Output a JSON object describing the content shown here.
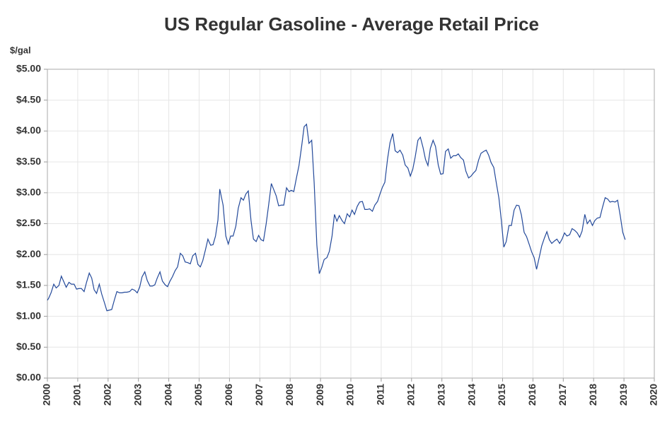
{
  "chart_data": {
    "type": "line",
    "title": "US Regular Gasoline - Average Retail Price",
    "ylabel": "$/gal",
    "grid": true,
    "xlim": [
      2000,
      2020
    ],
    "xticks": [
      2000,
      2001,
      2002,
      2003,
      2004,
      2005,
      2006,
      2007,
      2008,
      2009,
      2010,
      2011,
      2012,
      2013,
      2014,
      2015,
      2016,
      2017,
      2018,
      2019,
      2020
    ],
    "ylim": [
      0,
      5
    ],
    "yticks": [
      {
        "value": 0,
        "label": "$0.00"
      },
      {
        "value": 0.5,
        "label": "$0.50"
      },
      {
        "value": 1,
        "label": "$1.00"
      },
      {
        "value": 1.5,
        "label": "$1.50"
      },
      {
        "value": 2,
        "label": "$2.00"
      },
      {
        "value": 2.5,
        "label": "$2.50"
      },
      {
        "value": 3,
        "label": "$3.00"
      },
      {
        "value": 3.5,
        "label": "$3.50"
      },
      {
        "value": 4,
        "label": "$4.00"
      },
      {
        "value": 4.5,
        "label": "$4.50"
      },
      {
        "value": 5,
        "label": "$5.00"
      }
    ],
    "x": [
      2000,
      2000.04,
      2000.12,
      2000.21,
      2000.29,
      2000.38,
      2000.46,
      2000.54,
      2000.62,
      2000.71,
      2000.79,
      2000.88,
      2000.96,
      2001.04,
      2001.12,
      2001.21,
      2001.29,
      2001.38,
      2001.46,
      2001.54,
      2001.62,
      2001.71,
      2001.79,
      2001.88,
      2001.96,
      2002.04,
      2002.12,
      2002.21,
      2002.29,
      2002.38,
      2002.46,
      2002.54,
      2002.62,
      2002.71,
      2002.79,
      2002.88,
      2002.96,
      2003.04,
      2003.12,
      2003.21,
      2003.29,
      2003.38,
      2003.46,
      2003.54,
      2003.62,
      2003.71,
      2003.79,
      2003.88,
      2003.96,
      2004.04,
      2004.12,
      2004.21,
      2004.29,
      2004.38,
      2004.46,
      2004.54,
      2004.62,
      2004.71,
      2004.79,
      2004.88,
      2004.96,
      2005.04,
      2005.12,
      2005.21,
      2005.29,
      2005.38,
      2005.46,
      2005.54,
      2005.62,
      2005.68,
      2005.79,
      2005.88,
      2005.96,
      2006.04,
      2006.12,
      2006.21,
      2006.29,
      2006.38,
      2006.46,
      2006.54,
      2006.62,
      2006.71,
      2006.79,
      2006.88,
      2006.96,
      2007.04,
      2007.12,
      2007.21,
      2007.29,
      2007.38,
      2007.46,
      2007.54,
      2007.62,
      2007.71,
      2007.79,
      2007.88,
      2007.96,
      2008.04,
      2008.12,
      2008.21,
      2008.29,
      2008.38,
      2008.46,
      2008.54,
      2008.62,
      2008.71,
      2008.79,
      2008.88,
      2008.96,
      2009.04,
      2009.12,
      2009.21,
      2009.29,
      2009.38,
      2009.46,
      2009.54,
      2009.62,
      2009.71,
      2009.79,
      2009.88,
      2009.96,
      2010.04,
      2010.12,
      2010.21,
      2010.29,
      2010.38,
      2010.46,
      2010.54,
      2010.62,
      2010.71,
      2010.79,
      2010.88,
      2010.96,
      2011.04,
      2011.12,
      2011.21,
      2011.29,
      2011.38,
      2011.46,
      2011.54,
      2011.62,
      2011.71,
      2011.79,
      2011.88,
      2011.96,
      2012.04,
      2012.12,
      2012.21,
      2012.29,
      2012.38,
      2012.46,
      2012.54,
      2012.62,
      2012.71,
      2012.79,
      2012.88,
      2012.96,
      2013.04,
      2013.12,
      2013.21,
      2013.29,
      2013.38,
      2013.46,
      2013.54,
      2013.62,
      2013.71,
      2013.79,
      2013.88,
      2013.96,
      2014.04,
      2014.12,
      2014.21,
      2014.29,
      2014.38,
      2014.46,
      2014.54,
      2014.62,
      2014.71,
      2014.79,
      2014.88,
      2014.96,
      2015.04,
      2015.12,
      2015.21,
      2015.29,
      2015.38,
      2015.46,
      2015.54,
      2015.62,
      2015.71,
      2015.79,
      2015.88,
      2015.96,
      2016.04,
      2016.12,
      2016.21,
      2016.29,
      2016.38,
      2016.46,
      2016.54,
      2016.62,
      2016.71,
      2016.79,
      2016.88,
      2016.96,
      2017.04,
      2017.12,
      2017.21,
      2017.29,
      2017.38,
      2017.46,
      2017.54,
      2017.62,
      2017.71,
      2017.79,
      2017.88,
      2017.96,
      2018.04,
      2018.12,
      2018.21,
      2018.29,
      2018.38,
      2018.46,
      2018.54,
      2018.62,
      2018.71,
      2018.79,
      2018.88,
      2018.96,
      2019.04
    ],
    "series": [
      {
        "name": "Regular Gasoline",
        "color": "#23499a",
        "values": [
          1.26,
          1.29,
          1.38,
          1.52,
          1.46,
          1.5,
          1.65,
          1.56,
          1.47,
          1.55,
          1.52,
          1.52,
          1.44,
          1.45,
          1.45,
          1.4,
          1.55,
          1.7,
          1.62,
          1.43,
          1.37,
          1.52,
          1.36,
          1.22,
          1.09,
          1.1,
          1.11,
          1.27,
          1.4,
          1.38,
          1.38,
          1.39,
          1.39,
          1.4,
          1.44,
          1.42,
          1.38,
          1.47,
          1.64,
          1.72,
          1.58,
          1.49,
          1.49,
          1.51,
          1.62,
          1.72,
          1.57,
          1.51,
          1.48,
          1.57,
          1.64,
          1.74,
          1.8,
          2.02,
          1.98,
          1.88,
          1.87,
          1.85,
          1.98,
          2.02,
          1.84,
          1.8,
          1.9,
          2.08,
          2.25,
          2.15,
          2.16,
          2.3,
          2.56,
          3.06,
          2.8,
          2.3,
          2.17,
          2.3,
          2.3,
          2.46,
          2.75,
          2.92,
          2.88,
          2.98,
          3.03,
          2.55,
          2.25,
          2.21,
          2.31,
          2.24,
          2.22,
          2.5,
          2.8,
          3.15,
          3.05,
          2.95,
          2.79,
          2.8,
          2.8,
          3.08,
          3.02,
          3.04,
          3.02,
          3.25,
          3.44,
          3.76,
          4.07,
          4.11,
          3.8,
          3.85,
          3.17,
          2.15,
          1.69,
          1.79,
          1.92,
          1.95,
          2.05,
          2.3,
          2.65,
          2.54,
          2.63,
          2.55,
          2.5,
          2.66,
          2.61,
          2.72,
          2.65,
          2.78,
          2.85,
          2.86,
          2.73,
          2.73,
          2.74,
          2.7,
          2.8,
          2.86,
          2.98,
          3.09,
          3.17,
          3.55,
          3.81,
          3.96,
          3.68,
          3.65,
          3.69,
          3.61,
          3.45,
          3.4,
          3.27,
          3.38,
          3.58,
          3.85,
          3.9,
          3.73,
          3.54,
          3.44,
          3.72,
          3.85,
          3.75,
          3.45,
          3.3,
          3.31,
          3.67,
          3.71,
          3.56,
          3.6,
          3.6,
          3.63,
          3.57,
          3.53,
          3.35,
          3.24,
          3.27,
          3.32,
          3.36,
          3.53,
          3.64,
          3.67,
          3.69,
          3.61,
          3.49,
          3.41,
          3.17,
          2.91,
          2.55,
          2.12,
          2.21,
          2.47,
          2.47,
          2.72,
          2.8,
          2.79,
          2.64,
          2.36,
          2.29,
          2.16,
          2.04,
          1.95,
          1.76,
          1.96,
          2.14,
          2.27,
          2.37,
          2.24,
          2.18,
          2.22,
          2.25,
          2.18,
          2.25,
          2.35,
          2.3,
          2.32,
          2.42,
          2.39,
          2.35,
          2.28,
          2.38,
          2.65,
          2.5,
          2.56,
          2.47,
          2.55,
          2.59,
          2.6,
          2.76,
          2.92,
          2.9,
          2.85,
          2.86,
          2.85,
          2.88,
          2.62,
          2.36,
          2.24
        ]
      }
    ]
  }
}
